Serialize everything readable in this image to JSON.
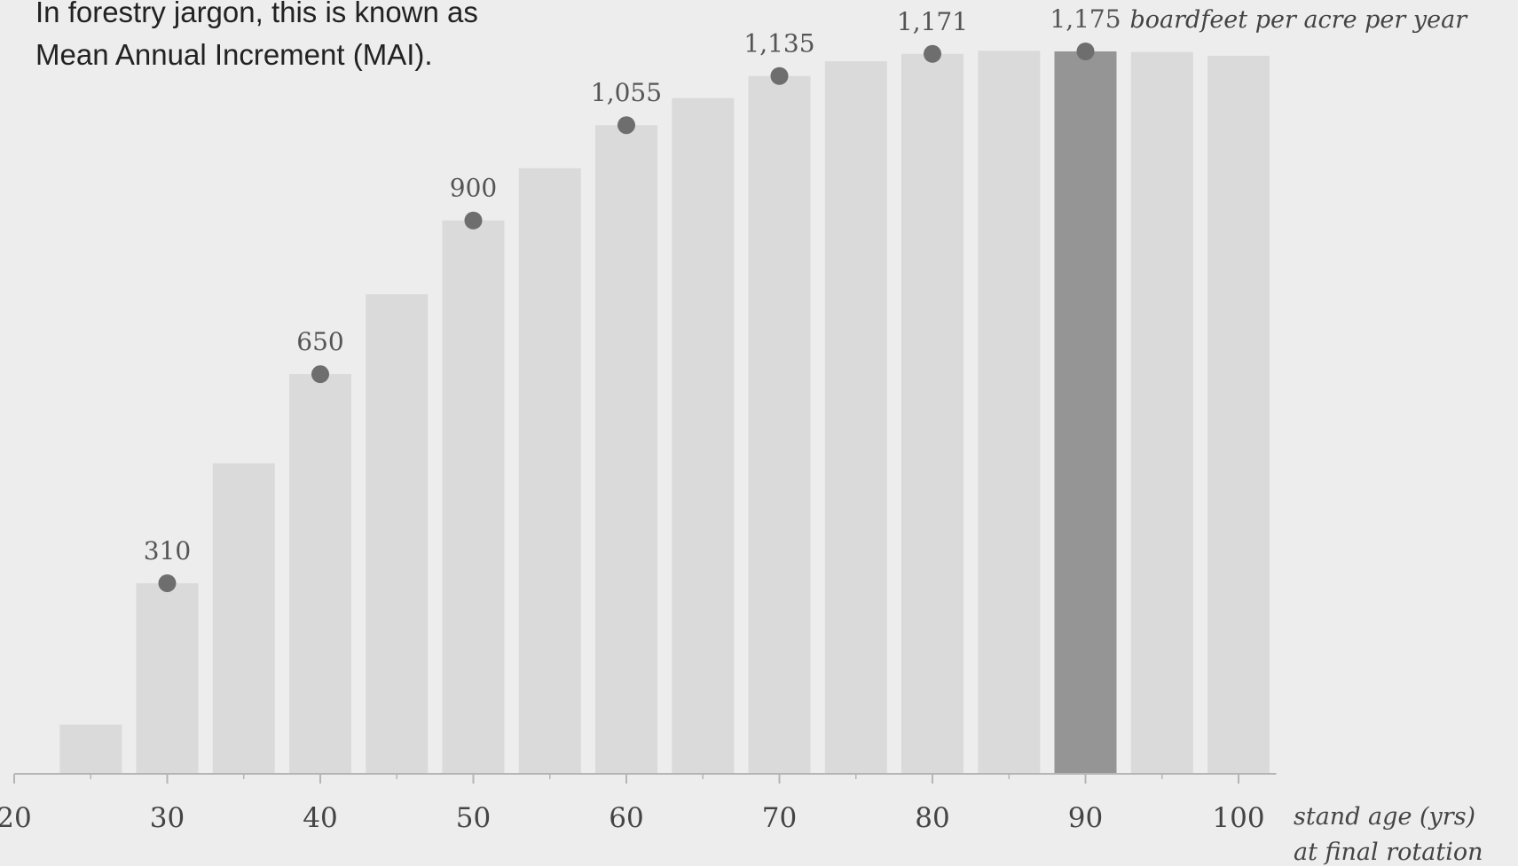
{
  "intro": {
    "line1": "In forestry jargon, this is known as",
    "line2": "Mean Annual Increment (MAI)."
  },
  "colors": {
    "background": "#ededed",
    "bar": "#dadada",
    "bar_highlight": "#959595",
    "dot": "#6e6e6e",
    "axis": "#b5b5b5"
  },
  "chart_data": {
    "type": "bar",
    "x": [
      25,
      30,
      35,
      40,
      45,
      50,
      55,
      60,
      65,
      70,
      75,
      80,
      85,
      90,
      95,
      100
    ],
    "values": [
      80,
      310,
      505,
      650,
      780,
      900,
      985,
      1055,
      1099,
      1135,
      1159,
      1171,
      1176,
      1175,
      1174,
      1168
    ],
    "highlight_x": 90,
    "labeled_points": [
      {
        "x": 30,
        "value": 310,
        "label": "310"
      },
      {
        "x": 40,
        "value": 650,
        "label": "650"
      },
      {
        "x": 50,
        "value": 900,
        "label": "900"
      },
      {
        "x": 60,
        "value": 1055,
        "label": "1,055"
      },
      {
        "x": 70,
        "value": 1135,
        "label": "1,135"
      },
      {
        "x": 80,
        "value": 1171,
        "label": "1,171"
      },
      {
        "x": 90,
        "value": 1175,
        "label": "1,175"
      }
    ],
    "x_ticks": [
      20,
      30,
      40,
      50,
      60,
      70,
      80,
      90,
      100
    ],
    "x_tick_labels": [
      "20",
      "30",
      "40",
      "50",
      "60",
      "70",
      "80",
      "90",
      "100"
    ],
    "x_minor_ticks": [
      25,
      35,
      45,
      55,
      65,
      75,
      85,
      95
    ],
    "xlim": [
      20,
      102
    ],
    "ylim": [
      0,
      1175
    ],
    "ylabel": "boardfeet per acre per year",
    "xlabel_line1": "stand age (yrs)",
    "xlabel_line2": "at final rotation",
    "grid": false
  }
}
